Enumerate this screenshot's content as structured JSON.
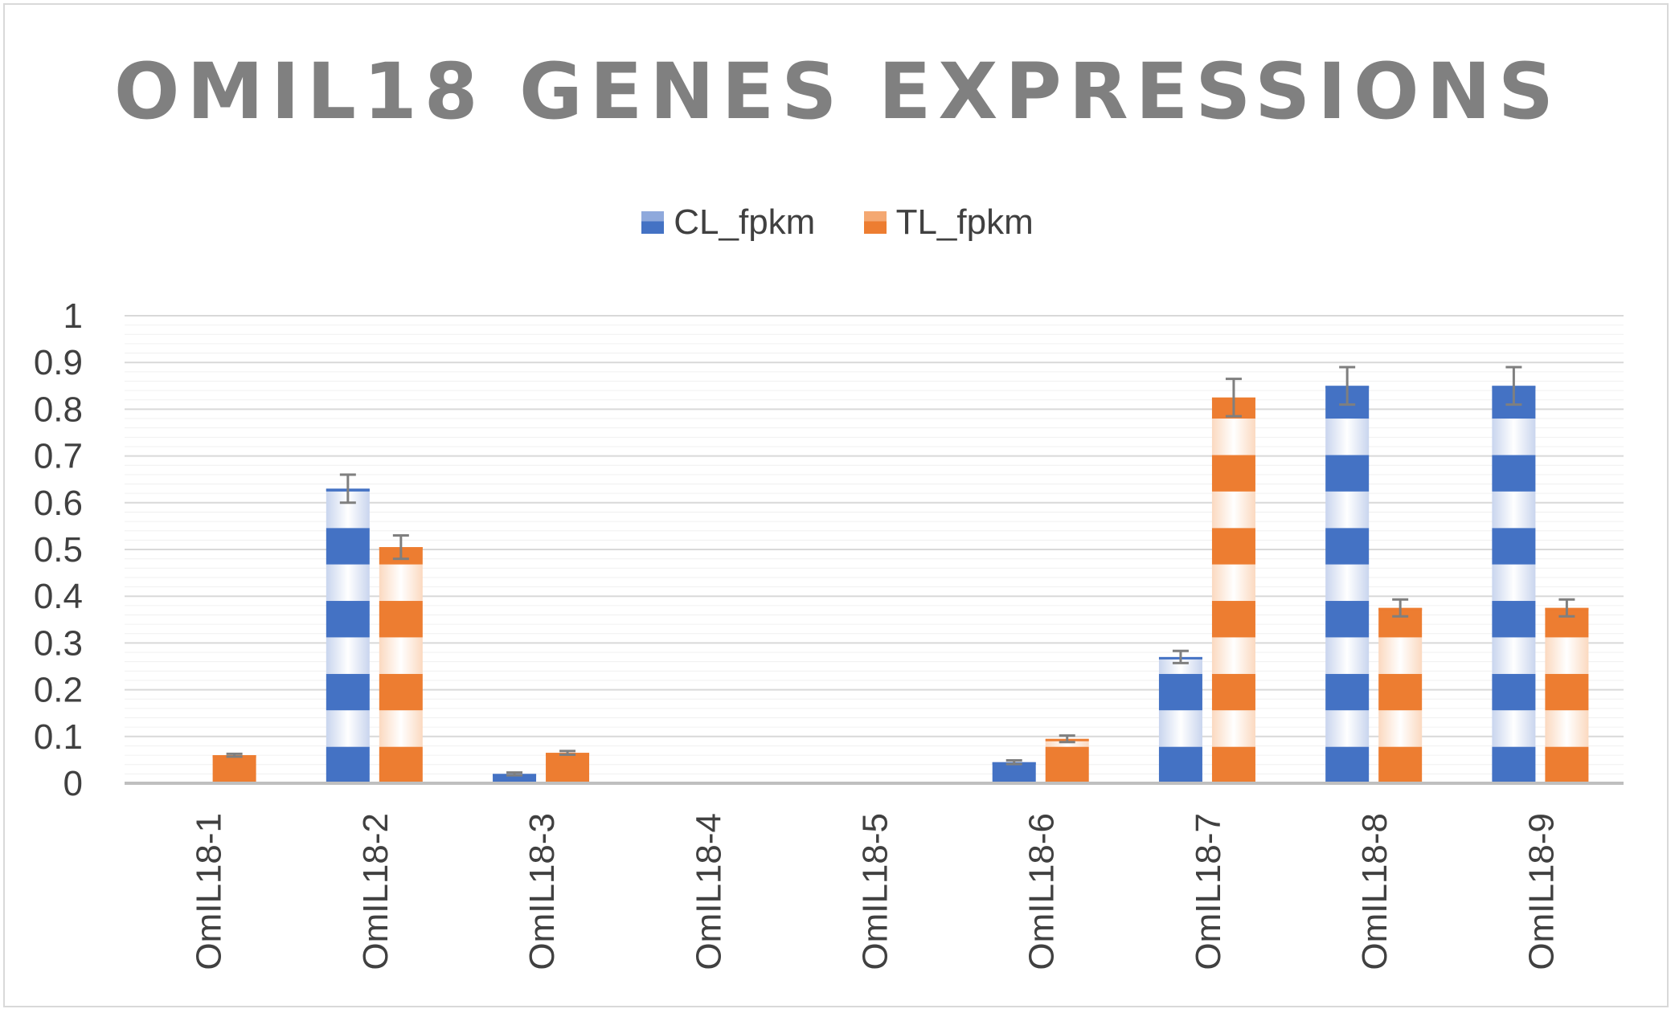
{
  "chart_data": {
    "type": "bar",
    "title": "OMIL18 GENES EXPRESSIONS",
    "xlabel": "",
    "ylabel": "",
    "ylim": [
      0,
      1
    ],
    "yticks": [
      "0",
      "0.1",
      "0.2",
      "0.3",
      "0.4",
      "0.5",
      "0.6",
      "0.7",
      "0.8",
      "0.9",
      "1"
    ],
    "grid": true,
    "legend_position": "top",
    "categories": [
      "OmIL18-1",
      "OmIL18-2",
      "OmIL18-3",
      "OmIL18-4",
      "OmIL18-5",
      "OmIL18-6",
      "OmIL18-7",
      "OmIL18-8",
      "OmIL18-9"
    ],
    "series": [
      {
        "name": "CL_fpkm",
        "color": "#4472c4",
        "light_color": "#c9d5ee",
        "values": [
          0,
          0.63,
          0.02,
          0,
          0,
          0.045,
          0.27,
          0.85,
          0.85
        ],
        "error": [
          0,
          0.03,
          0.003,
          0,
          0,
          0.004,
          0.013,
          0.04,
          0.04
        ]
      },
      {
        "name": "TL_fpkm",
        "color": "#ed7d31",
        "light_color": "#fbd9c0",
        "values": [
          0.06,
          0.505,
          0.065,
          0,
          0,
          0.095,
          0.825,
          0.375,
          0.375
        ],
        "error": [
          0.003,
          0.025,
          0.004,
          0,
          0,
          0.007,
          0.04,
          0.018,
          0.018
        ]
      }
    ],
    "error_bar_color": "#7f7f7f"
  }
}
